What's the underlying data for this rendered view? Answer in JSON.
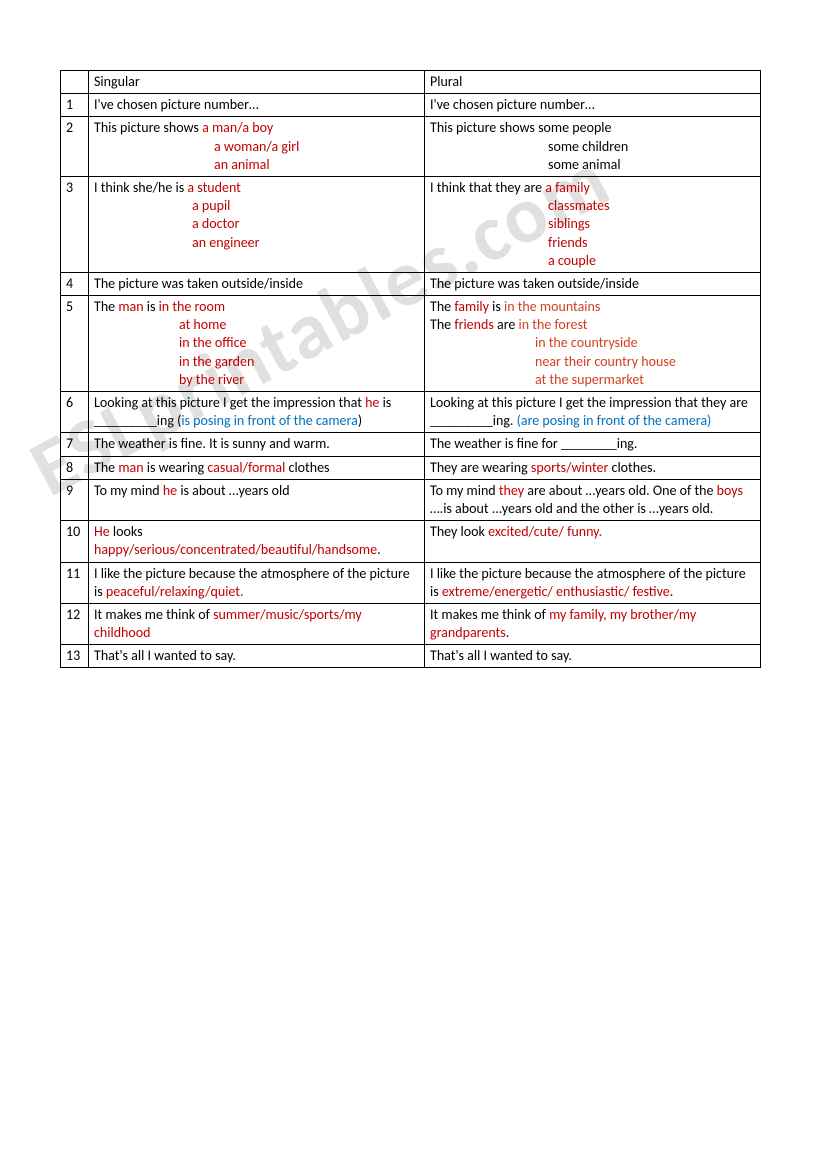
{
  "watermark": "ESLprintables.com",
  "colors": {
    "red": "#c00000",
    "blue": "#0070c0",
    "border": "#000000",
    "bg": "#ffffff",
    "watermark": "#e0e0e0"
  },
  "table": {
    "header": {
      "num": "",
      "singular": "Singular",
      "plural": "Plural"
    },
    "rows": [
      {
        "num": "1",
        "singular": [
          {
            "t": "I've chosen picture number…"
          }
        ],
        "plural": [
          {
            "t": "I've chosen picture number…"
          }
        ]
      },
      {
        "num": "2",
        "singular_lines": [
          [
            {
              "t": "This picture shows  "
            },
            {
              "t": "a man/a boy",
              "c": "red"
            }
          ],
          [
            {
              "t": "a woman/a girl",
              "c": "red",
              "indent": "indent1"
            }
          ],
          [
            {
              "t": "an animal",
              "c": "red",
              "indent": "indent1"
            }
          ]
        ],
        "plural_lines": [
          [
            {
              "t": "This picture shows  some people"
            }
          ],
          [
            {
              "t": "some children",
              "indent": "indent1b"
            }
          ],
          [
            {
              "t": "some animal",
              "indent": "indent1b"
            }
          ]
        ]
      },
      {
        "num": "3",
        "singular_lines": [
          [
            {
              "t": "I think she/he is "
            },
            {
              "t": "a student",
              "c": "red"
            }
          ],
          [
            {
              "t": "a pupil",
              "c": "red",
              "indent": "indent2b"
            }
          ],
          [
            {
              "t": "a doctor",
              "c": "red",
              "indent": "indent2b"
            }
          ],
          [
            {
              "t": "an engineer",
              "c": "red",
              "indent": "indent2b"
            }
          ]
        ],
        "plural_lines": [
          [
            {
              "t": "I think that they are "
            },
            {
              "t": "a family",
              "c": "red"
            }
          ],
          [
            {
              "t": "classmates",
              "c": "red",
              "indent": "indent1b"
            }
          ],
          [
            {
              "t": "siblings",
              "c": "red",
              "indent": "indent1b"
            }
          ],
          [
            {
              "t": "friends",
              "c": "red",
              "indent": "indent1b"
            }
          ],
          [
            {
              "t": "a couple",
              "c": "red",
              "indent": "indent1b"
            }
          ]
        ]
      },
      {
        "num": "4",
        "singular": [
          {
            "t": "The picture was taken outside/inside"
          }
        ],
        "plural": [
          {
            "t": "The picture was taken outside/inside"
          }
        ]
      },
      {
        "num": "5",
        "singular_lines": [
          [
            {
              "t": "The "
            },
            {
              "t": "man",
              "c": "red"
            },
            {
              "t": " is "
            },
            {
              "t": "in the room",
              "c": "red"
            }
          ],
          [
            {
              "t": "at home",
              "c": "red",
              "indent": "indent2"
            }
          ],
          [
            {
              "t": "in the office",
              "c": "red",
              "indent": "indent2"
            }
          ],
          [
            {
              "t": "in the garden",
              "c": "red",
              "indent": "indent2"
            }
          ],
          [
            {
              "t": "by the river",
              "c": "red",
              "indent": "indent2"
            }
          ],
          [
            {
              "t": " "
            }
          ]
        ],
        "plural_lines": [
          [
            {
              "t": "The "
            },
            {
              "t": "family",
              "c": "red"
            },
            {
              "t": " is        "
            },
            {
              "t": "in the mountains",
              "c": "red-alt"
            }
          ],
          [
            {
              "t": " The "
            },
            {
              "t": "friends",
              "c": "red"
            },
            {
              "t": " are   "
            },
            {
              "t": "in the forest",
              "c": "red-alt"
            }
          ],
          [
            {
              "t": "in the countryside",
              "c": "red-alt",
              "indent": "indent4"
            }
          ],
          [
            {
              "t": "near their country house",
              "c": "red-alt",
              "indent": "indent4"
            }
          ],
          [
            {
              "t": "at the supermarket",
              "c": "red-alt",
              "indent": "indent4"
            }
          ]
        ]
      },
      {
        "num": "6",
        "singular": [
          {
            "t": "Looking at this picture I get the impression that "
          },
          {
            "t": "he",
            "c": "red"
          },
          {
            "t": " is _________ing ("
          },
          {
            "t": "is posing in front of the camera",
            "c": "blue"
          },
          {
            "t": ")"
          }
        ],
        "plural": [
          {
            "t": "Looking at this picture I get the impression that they are _________ing. "
          },
          {
            "t": "(are posing in front of the camera)",
            "c": "blue"
          }
        ]
      },
      {
        "num": "7",
        "singular": [
          {
            "t": "The weather is fine. It is sunny and warm."
          }
        ],
        "plural": [
          {
            "t": "The weather is fine for ________ing."
          }
        ]
      },
      {
        "num": "8",
        "singular": [
          {
            "t": "The "
          },
          {
            "t": "man",
            "c": "red"
          },
          {
            "t": " is wearing "
          },
          {
            "t": "casual/formal",
            "c": "red"
          },
          {
            "t": " clothes"
          }
        ],
        "plural": [
          {
            "t": "They are wearing "
          },
          {
            "t": "sports/winter",
            "c": "red"
          },
          {
            "t": " clothes."
          }
        ]
      },
      {
        "num": "9",
        "singular": [
          {
            "t": "To my mind "
          },
          {
            "t": "he",
            "c": "red"
          },
          {
            "t": " is about …years old"
          }
        ],
        "plural": [
          {
            "t": "To my mind "
          },
          {
            "t": "they",
            "c": "red"
          },
          {
            "t": "  are about …years old. One of the "
          },
          {
            "t": "boys",
            "c": "red"
          },
          {
            "t": " ….is about ...years old and the other is …years old."
          }
        ]
      },
      {
        "num": "10",
        "singular": [
          {
            "t": "He",
            "c": "red"
          },
          {
            "t": " looks "
          },
          {
            "t": "happy/serious/concentrated/beautiful/handsome",
            "c": "red"
          },
          {
            "t": "."
          }
        ],
        "plural": [
          {
            "t": "They look "
          },
          {
            "t": "excited/cute/ funny.",
            "c": "red"
          }
        ]
      },
      {
        "num": "11",
        "singular": [
          {
            "t": "I like the picture because the atmosphere of the picture is "
          },
          {
            "t": "peaceful/relaxing/quiet.",
            "c": "red"
          }
        ],
        "plural": [
          {
            "t": "I like the picture because the atmosphere of the picture is "
          },
          {
            "t": "extreme/energetic/ enthusiastic/ festive",
            "c": "red"
          },
          {
            "t": "."
          }
        ]
      },
      {
        "num": "12",
        "singular": [
          {
            "t": "It makes me think of "
          },
          {
            "t": "summer/music/sports/my childhood",
            "c": "red"
          }
        ],
        "plural": [
          {
            "t": "It makes me think of "
          },
          {
            "t": "my family, my brother/my grandparents",
            "c": "red"
          },
          {
            "t": "."
          }
        ]
      },
      {
        "num": "13",
        "singular": [
          {
            "t": "That's all I wanted to say."
          }
        ],
        "plural": [
          {
            "t": "That's all I wanted to say."
          }
        ]
      }
    ]
  }
}
